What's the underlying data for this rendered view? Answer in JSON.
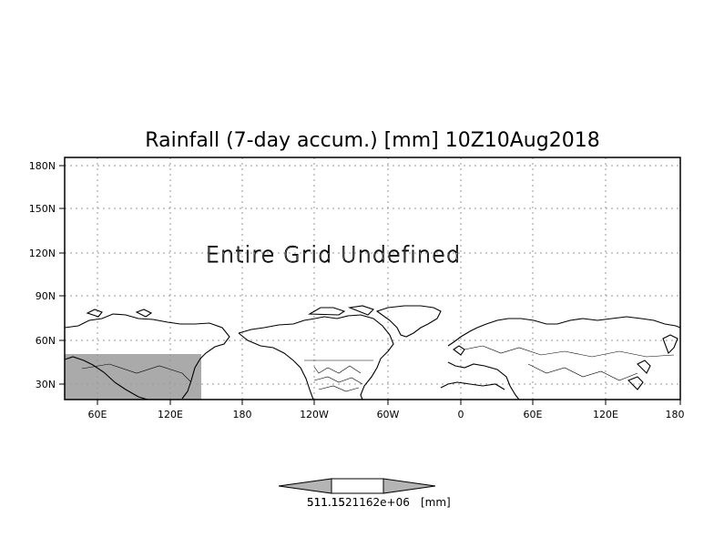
{
  "title": "Rainfall (7-day accum.) [mm] 10Z10Aug2018",
  "overlay_message": "Entire Grid Undefined",
  "latitude_ticks": [
    "180N",
    "150N",
    "120N",
    "90N",
    "60N",
    "30N"
  ],
  "longitude_ticks": [
    "60E",
    "120E",
    "180",
    "120W",
    "60W",
    "0",
    "60E",
    "120E",
    "180"
  ],
  "legend": {
    "label": "511.1521162e+06",
    "label_overprint": "511.15",
    "unit": "[mm]"
  },
  "colors": {
    "shaded_region": "#aaaaaa",
    "legend_fill": "#b4b4b4",
    "frame": "#000000",
    "grid": "#9a9a9a"
  }
}
